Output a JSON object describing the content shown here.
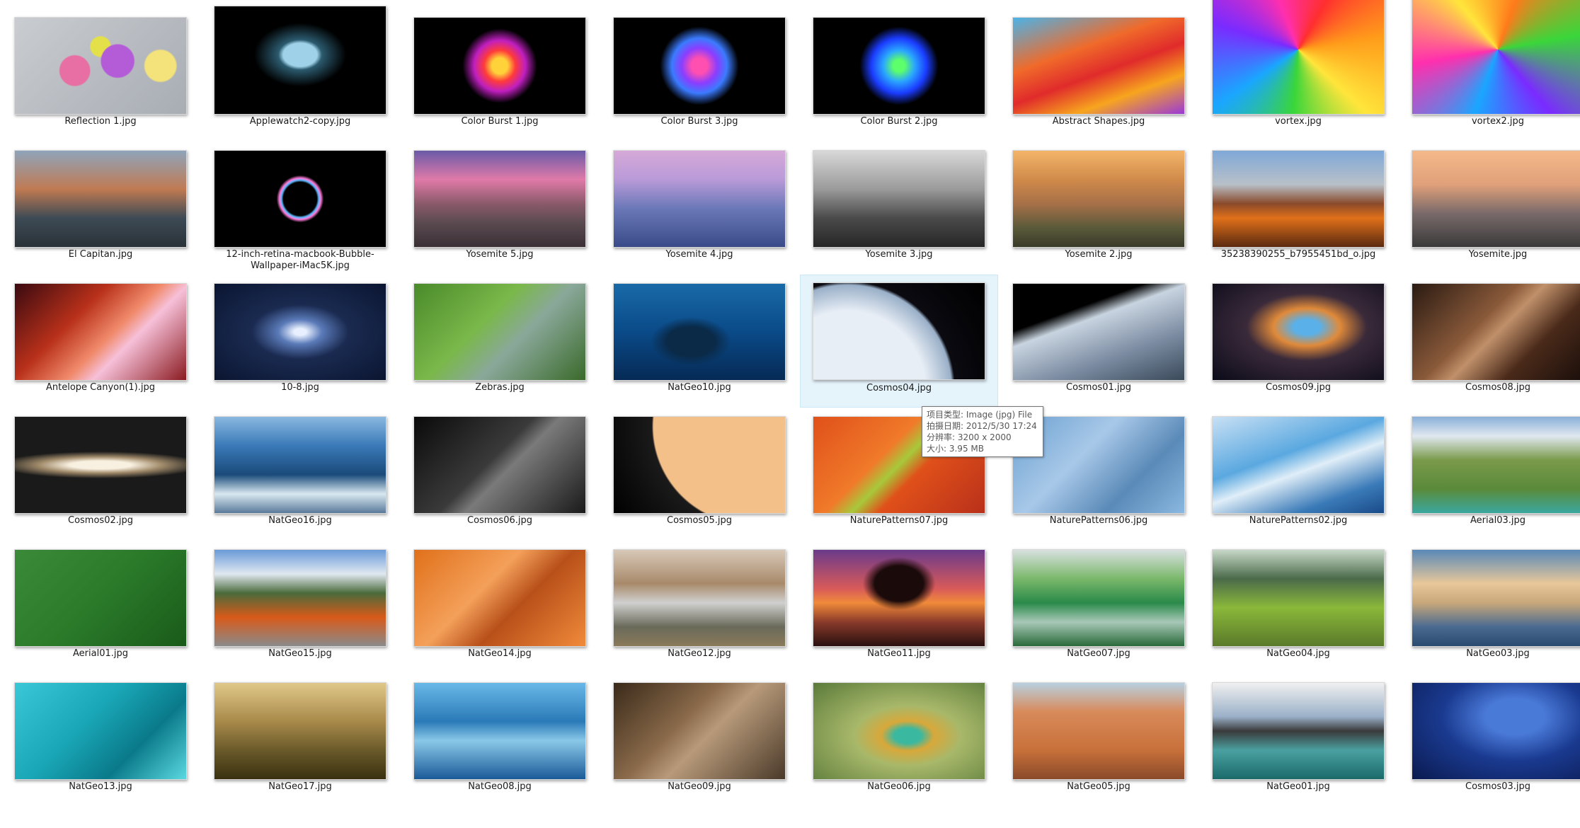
{
  "items": [
    {
      "name": "Reflection 1.jpg",
      "bg": "linear-gradient(135deg,#c9ccd0,#a8adb4)",
      "accent": "radial-gradient(circle at 35% 55%,#e86fa3 0 12%,transparent 13%),radial-gradient(circle at 60% 45%,#b45cd8 0 14%,transparent 15%),radial-gradient(circle at 50% 30%,#e3e04a 0 9%,transparent 10%),radial-gradient(circle at 85% 50%,#f4e27a 0 10%,transparent 11%)"
    },
    {
      "name": "Applewatch2-copy.jpg",
      "bg": "#000000",
      "accent": "radial-gradient(ellipse at 50% 45%,#9fd2e8 0 14%,#2b5a6e 18%,transparent 38%)"
    },
    {
      "name": "Color Burst 1.jpg",
      "bg": "#000000",
      "accent": "radial-gradient(circle at 50% 50%,#ffd23a 0 8%,#ff3a3a 16%,#c01fbf 26%,transparent 38%)"
    },
    {
      "name": "Color Burst 3.jpg",
      "bg": "#000000",
      "accent": "radial-gradient(circle at 50% 50%,#ff4fb0 0 8%,#8b3dff 18%,#3b7bff 28%,transparent 40%)"
    },
    {
      "name": "Color Burst 2.jpg",
      "bg": "#000000",
      "accent": "radial-gradient(circle at 50% 50%,#5dff6a 0 6%,#2aa6ff 16%,#1b3cff 28%,transparent 40%)"
    },
    {
      "name": "Abstract Shapes.jpg",
      "bg": "linear-gradient(160deg,#4bb3e8 0%,#f06a2a 35%,#e02b2b 55%,#f7a51e 75%,#9a3ad8 100%)",
      "accent": ""
    },
    {
      "name": "vortex.jpg",
      "bg": "conic-gradient(from 30deg,#ff2f2f,#ff9c1a,#ffe53b,#3ad63a,#1aa6ff,#7a2bff,#ff2fae,#ff2f2f)",
      "accent": ""
    },
    {
      "name": "vortex2.jpg",
      "bg": "conic-gradient(from 200deg,#1aa6ff,#ff2fae,#ffe53b,#ff7a1a,#3ad63a,#7a2bff,#1aa6ff)",
      "accent": ""
    },
    {
      "name": "El Capitan.jpg",
      "bg": "linear-gradient(180deg,#8fa4bb 0%,#c07a52 40%,#3d4a55 70%,#2a3238 100%)",
      "accent": ""
    },
    {
      "name": "12-inch-retina-macbook-Bubble-Wallpaper-iMac5K.jpg",
      "bg": "#000000",
      "accent": "radial-gradient(circle at 50% 50%,transparent 0 17%,#5ab9ff 19%,#ff7ad9 21%,transparent 24%)"
    },
    {
      "name": "Yosemite 5.jpg",
      "bg": "linear-gradient(180deg,#6a5aa8 0%,#e07aa8 30%,#8a5a6a 55%,#5a4a50 75%,#3a3035 100%)",
      "accent": ""
    },
    {
      "name": "Yosemite 4.jpg",
      "bg": "linear-gradient(180deg,#d6a9d8 0%,#b99ad8 30%,#6a78b8 60%,#3a4a88 100%)",
      "accent": ""
    },
    {
      "name": "Yosemite 3.jpg",
      "bg": "linear-gradient(180deg,#d8d8d8 0%,#9a9a9a 40%,#4a4a4a 70%,#262626 100%)",
      "accent": ""
    },
    {
      "name": "Yosemite 2.jpg",
      "bg": "linear-gradient(180deg,#f3b56a 0%,#d08a4a 30%,#a77048 55%,#5a5a3a 80%,#3a3a2a 100%)",
      "accent": ""
    },
    {
      "name": "35238390255_b7955451bd_o.jpg",
      "bg": "linear-gradient(180deg,#7fa8d8 0%,#b8c0c8 35%,#8a4a2a 55%,#e0701a 70%,#5a2a10 100%)",
      "accent": ""
    },
    {
      "name": "Yosemite.jpg",
      "bg": "linear-gradient(180deg,#f4b98a 0%,#e0a07a 35%,#7a6a6a 65%,#3a3a3a 100%)",
      "accent": ""
    },
    {
      "name": "Antelope Canyon(1).jpg",
      "bg": "linear-gradient(135deg,#3a0a10 0%,#b8301a 35%,#f08a6a 55%,#f6c0d8 65%,#8a1a20 100%)",
      "accent": ""
    },
    {
      "name": "10-8.jpg",
      "bg": "radial-gradient(ellipse at 50% 50%,#e8f0ff 0 5%,#5a7ab8 18%,#1a2a50 40%,#0a1530 100%)",
      "accent": ""
    },
    {
      "name": "Zebras.jpg",
      "bg": "linear-gradient(135deg,#4a8a2a 0%,#7ab84a 40%,#8aa89a 60%,#3a6a2a 100%)",
      "accent": ""
    },
    {
      "name": "NatGeo10.jpg",
      "bg": "linear-gradient(180deg,#1a6aa8 0%,#0a4a88 50%,#062a55 100%)",
      "accent": "radial-gradient(ellipse at 45% 60%,#0a2a48 0 18%,transparent 30%)"
    },
    {
      "name": "Cosmos04.jpg",
      "bg": "radial-gradient(circle at 20% 110%,#e8eef6 0 45%,#9ab0c8 60%,#0a0a10 62%,#000 100%)",
      "accent": ""
    },
    {
      "name": "Cosmos01.jpg",
      "bg": "linear-gradient(160deg,#000 0 30%,#c8d4e0 40%,#7a8aa0 70%,#3a4a5a 100%)",
      "accent": ""
    },
    {
      "name": "Cosmos09.jpg",
      "bg": "radial-gradient(ellipse at 55% 45%,#5ab0e8 0 10%,#e08a3a 25%,#3a2a3a 45%,#0a0a18 100%)",
      "accent": ""
    },
    {
      "name": "Cosmos08.jpg",
      "bg": "linear-gradient(135deg,#2a1a12 0%,#8a5a3a 40%,#c0906a 50%,#4a2a1a 70%,#1a0e0a 100%)",
      "accent": ""
    },
    {
      "name": "Cosmos02.jpg",
      "bg": "radial-gradient(ellipse 60% 14% at 50% 50%,#f8f0e0 0 30%,#a08a6a 60%,#1a1a1a 100%)",
      "accent": ""
    },
    {
      "name": "NatGeo16.jpg",
      "bg": "linear-gradient(180deg,#8ab8e0 0%,#3a7ab8 30%,#1a4a7a 60%,#d8e8f0 80%,#5a7a9a 100%)",
      "accent": ""
    },
    {
      "name": "Cosmos06.jpg",
      "bg": "linear-gradient(135deg,#0a0a0a 0%,#3a3a3a 45%,#7a7a7a 55%,#1a1a1a 100%)",
      "accent": ""
    },
    {
      "name": "Cosmos05.jpg",
      "bg": "radial-gradient(circle at 80% 10%,#f4c08a 0 60%,#1a1a1a 61%,#000 100%)",
      "accent": ""
    },
    {
      "name": "NaturePatterns07.jpg",
      "bg": "linear-gradient(135deg,#e0501a 0%,#f07a2a 40%,#a8c83a 50%,#e0501a 60%,#b8301a 100%)",
      "accent": ""
    },
    {
      "name": "NaturePatterns06.jpg",
      "bg": "linear-gradient(135deg,#6aa0d0 0%,#a8c8e8 40%,#5a8ab8 70%,#8ab8e0 100%)",
      "accent": ""
    },
    {
      "name": "NaturePatterns02.jpg",
      "bg": "linear-gradient(160deg,#c8e0f4 0%,#5aa8e0 40%,#e0eef8 55%,#3a7ab8 80%,#1a4a88 100%)",
      "accent": ""
    },
    {
      "name": "Aerial03.jpg",
      "bg": "linear-gradient(180deg,#8ab0d8 0%,#e0e8f0 20%,#7a9a4a 45%,#5a8a3a 75%,#3aa8a0 100%)",
      "accent": ""
    },
    {
      "name": "Aerial01.jpg",
      "bg": "linear-gradient(135deg,#3a8a3a 0%,#2a7a2a 50%,#1a5a1a 100%)",
      "accent": ""
    },
    {
      "name": "NatGeo15.jpg",
      "bg": "linear-gradient(180deg,#6a9ad8 0%,#e0e8f0 25%,#4a6a3a 45%,#d85a1a 70%,#8a8a8a 100%)",
      "accent": ""
    },
    {
      "name": "NatGeo14.jpg",
      "bg": "linear-gradient(135deg,#e0701a 0%,#f4a05a 40%,#b8501a 60%,#f08a3a 100%)",
      "accent": ""
    },
    {
      "name": "NatGeo12.jpg",
      "bg": "linear-gradient(180deg,#d8c8b8 0%,#a88a6a 35%,#d0d0d0 55%,#6a6a5a 80%,#8a7a5a 100%)",
      "accent": ""
    },
    {
      "name": "NatGeo11.jpg",
      "bg": "linear-gradient(180deg,#6a3a8a 0%,#d85a5a 40%,#f08a3a 55%,#8a3a2a 75%,#2a1010 100%)",
      "accent": "radial-gradient(ellipse at 50% 35%,#1a0a0a 0 20%,transparent 30%)"
    },
    {
      "name": "NatGeo07.jpg",
      "bg": "linear-gradient(180deg,#d8e0e0 0%,#7ab86a 30%,#2a8a4a 55%,#a8c8b8 75%,#2a6a3a 100%)",
      "accent": ""
    },
    {
      "name": "NatGeo04.jpg",
      "bg": "linear-gradient(180deg,#c8d8c8 0%,#4a6a4a 30%,#8ab83a 60%,#5a7a2a 100%)",
      "accent": ""
    },
    {
      "name": "NatGeo03.jpg",
      "bg": "linear-gradient(180deg,#5a88b8 0%,#e8c89a 35%,#c8a87a 55%,#4a6a90 80%,#2a4a70 100%)",
      "accent": ""
    },
    {
      "name": "NatGeo13.jpg",
      "bg": "linear-gradient(135deg,#3ac8d8 0%,#1aa8b8 40%,#0a7a8a 70%,#5ad8e0 100%)",
      "accent": ""
    },
    {
      "name": "NatGeo17.jpg",
      "bg": "linear-gradient(180deg,#e0c88a 0%,#a88a4a 40%,#6a5a2a 70%,#3a3010 100%)",
      "accent": ""
    },
    {
      "name": "NatGeo08.jpg",
      "bg": "linear-gradient(180deg,#6ab8e8 0%,#2a7ab8 40%,#8ac8e8 60%,#1a5a98 100%)",
      "accent": ""
    },
    {
      "name": "NatGeo09.jpg",
      "bg": "linear-gradient(135deg,#3a2a1a 0%,#8a6a4a 40%,#b89a7a 55%,#4a3a2a 100%)",
      "accent": ""
    },
    {
      "name": "NatGeo06.jpg",
      "bg": "radial-gradient(ellipse at 55% 55%,#3ab8a0 0 10%,#d8a83a 20%,#a8b86a 40%,#5a7a3a 100%)",
      "accent": ""
    },
    {
      "name": "NatGeo05.jpg",
      "bg": "linear-gradient(180deg,#b8d0e0 0%,#d88a5a 30%,#c8703a 70%,#8a4a2a 100%)",
      "accent": ""
    },
    {
      "name": "NatGeo01.jpg",
      "bg": "linear-gradient(180deg,#f0f0f0 0%,#9ab0c8 35%,#3a3a3a 50%,#4aa0a0 70%,#1a6a6a 100%)",
      "accent": ""
    },
    {
      "name": "Cosmos03.jpg",
      "bg": "radial-gradient(ellipse at 60% 35%,#4a7ad8 0 20%,#1a3a90 50%,#0a1a50 100%)",
      "accent": ""
    }
  ],
  "hovered_index": 20,
  "tooltip": {
    "type": "项目类型: Image (jpg) File",
    "date": "拍摄日期: 2012/5/30 17:24",
    "resolution": "分辨率: 3200 x 2000",
    "size": "大小: 3.95 MB"
  }
}
